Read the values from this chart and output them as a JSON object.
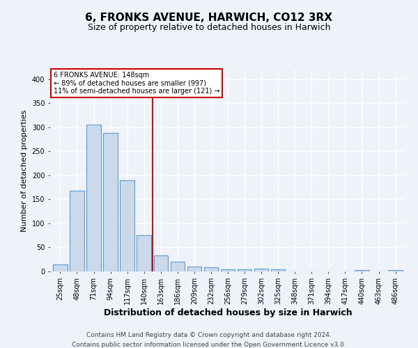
{
  "title": "6, FRONKS AVENUE, HARWICH, CO12 3RX",
  "subtitle": "Size of property relative to detached houses in Harwich",
  "xlabel": "Distribution of detached houses by size in Harwich",
  "ylabel": "Number of detached properties",
  "footnote1": "Contains HM Land Registry data © Crown copyright and database right 2024.",
  "footnote2": "Contains public sector information licensed under the Open Government Licence v3.0.",
  "categories": [
    "25sqm",
    "48sqm",
    "71sqm",
    "94sqm",
    "117sqm",
    "140sqm",
    "163sqm",
    "186sqm",
    "209sqm",
    "232sqm",
    "256sqm",
    "279sqm",
    "302sqm",
    "325sqm",
    "348sqm",
    "371sqm",
    "394sqm",
    "417sqm",
    "440sqm",
    "463sqm",
    "486sqm"
  ],
  "values": [
    15,
    168,
    305,
    288,
    190,
    76,
    33,
    20,
    10,
    9,
    5,
    5,
    6,
    4,
    0,
    0,
    0,
    0,
    3,
    0,
    3
  ],
  "bar_color": "#ccd9ea",
  "bar_edge_color": "#5b9bd5",
  "vline_x": 5.5,
  "vline_color": "#cc0000",
  "annotation_text": "6 FRONKS AVENUE: 148sqm\n← 89% of detached houses are smaller (997)\n11% of semi-detached houses are larger (121) →",
  "annotation_box_color": "white",
  "annotation_box_edge_color": "#cc0000",
  "ylim": [
    0,
    420
  ],
  "yticks": [
    0,
    50,
    100,
    150,
    200,
    250,
    300,
    350,
    400
  ],
  "background_color": "#eef2f9",
  "grid_color": "white",
  "title_fontsize": 11,
  "subtitle_fontsize": 9,
  "xlabel_fontsize": 9,
  "ylabel_fontsize": 8,
  "tick_fontsize": 7,
  "footnote_fontsize": 6.5
}
